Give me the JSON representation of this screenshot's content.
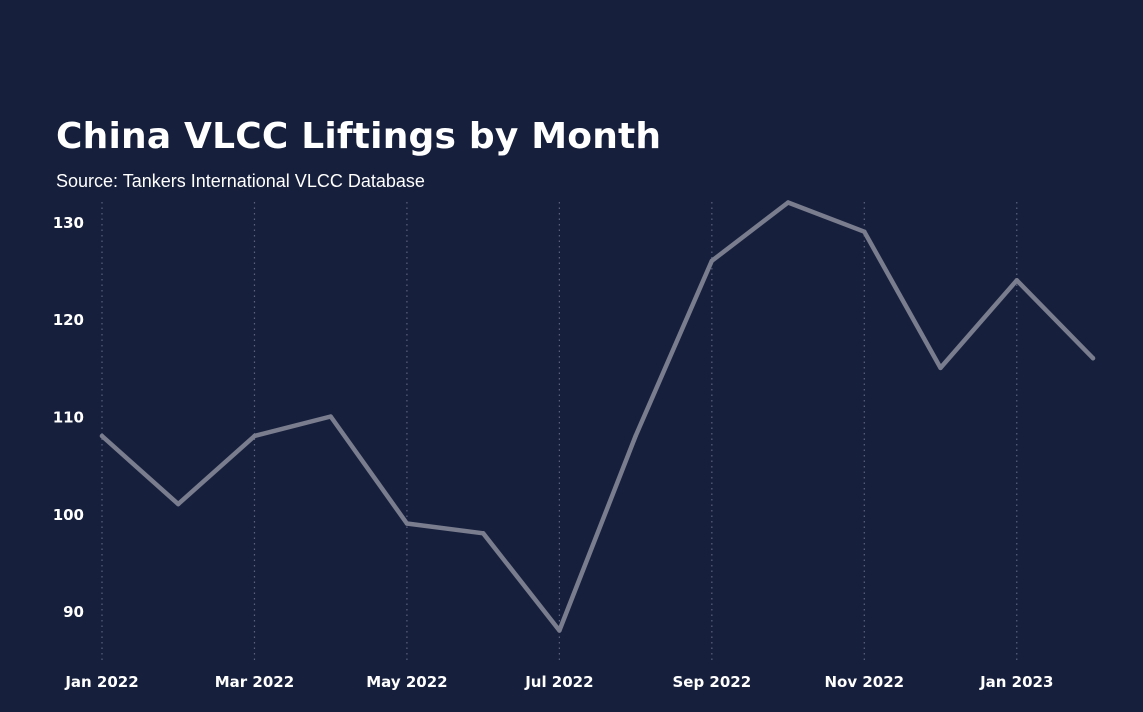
{
  "chart_data": {
    "type": "line",
    "title": "China VLCC Liftings by Month",
    "subtitle": "Source: Tankers International VLCC Database",
    "xlabel": "",
    "ylabel": "",
    "x": [
      "Jan 2022",
      "Feb 2022",
      "Mar 2022",
      "Apr 2022",
      "May 2022",
      "Jun 2022",
      "Jul 2022",
      "Aug 2022",
      "Sep 2022",
      "Oct 2022",
      "Nov 2022",
      "Dec 2022",
      "Jan 2023",
      "Feb 2023"
    ],
    "x_tick_labels": [
      "Jan 2022",
      "Mar 2022",
      "May 2022",
      "Jul 2022",
      "Sep 2022",
      "Nov 2022",
      "Jan 2023"
    ],
    "y_ticks": [
      90,
      100,
      110,
      120,
      130
    ],
    "ylim": [
      86,
      132
    ],
    "series": [
      {
        "name": "",
        "values": [
          108,
          101,
          108,
          110,
          99,
          98,
          88,
          108,
          126,
          132,
          129,
          115,
          124,
          116
        ]
      }
    ],
    "grid": "vertical dotted at labeled months",
    "legend": "none",
    "colors": {
      "background": "#161f3c",
      "line": "#7a7d8e",
      "grid": "#5a6180",
      "text": "#ffffff"
    }
  }
}
